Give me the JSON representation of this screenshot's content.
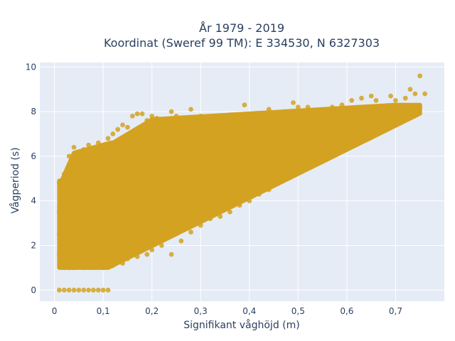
{
  "chart_data": {
    "type": "scatter",
    "title_line1": "År 1979 - 2019",
    "title_line2": "Koordinat (Sweref 99 TM): E 334530, N 6327303",
    "xlabel": "Signifikant våghöjd (m)",
    "ylabel": "Vågperiod (s)",
    "xlim": [
      -0.03,
      0.8
    ],
    "ylim": [
      -0.5,
      10.2
    ],
    "x_ticks": [
      0,
      0.1,
      0.2,
      0.3,
      0.4,
      0.5,
      0.6,
      0.7
    ],
    "x_tick_labels": [
      "0",
      "0,1",
      "0,2",
      "0,3",
      "0,4",
      "0,5",
      "0,6",
      "0,7"
    ],
    "y_ticks": [
      0,
      2,
      4,
      6,
      8,
      10
    ],
    "y_tick_labels": [
      "0",
      "2",
      "4",
      "6",
      "8",
      "10"
    ],
    "marker_color": "#d4a221",
    "background_color": "#e5ecf6",
    "grid": true,
    "series": [
      {
        "points": [
          [
            0.01,
            0.0
          ],
          [
            0.02,
            0.0
          ],
          [
            0.03,
            0.0
          ],
          [
            0.04,
            0.0
          ],
          [
            0.05,
            0.0
          ],
          [
            0.06,
            0.0
          ],
          [
            0.07,
            0.0
          ],
          [
            0.08,
            0.0
          ],
          [
            0.09,
            0.0
          ],
          [
            0.1,
            0.0
          ],
          [
            0.11,
            0.0
          ],
          [
            0.01,
            4.8
          ],
          [
            0.01,
            3.5
          ],
          [
            0.01,
            2.5
          ],
          [
            0.01,
            1.6
          ],
          [
            0.02,
            5.2
          ],
          [
            0.02,
            1.1
          ],
          [
            0.03,
            6.0
          ],
          [
            0.03,
            1.0
          ],
          [
            0.04,
            6.4
          ],
          [
            0.05,
            6.2
          ],
          [
            0.06,
            6.3
          ],
          [
            0.07,
            6.5
          ],
          [
            0.08,
            6.2
          ],
          [
            0.09,
            6.6
          ],
          [
            0.1,
            6.5
          ],
          [
            0.11,
            6.8
          ],
          [
            0.12,
            7.0
          ],
          [
            0.13,
            7.2
          ],
          [
            0.14,
            7.4
          ],
          [
            0.15,
            7.3
          ],
          [
            0.16,
            7.8
          ],
          [
            0.17,
            7.9
          ],
          [
            0.18,
            7.9
          ],
          [
            0.19,
            7.6
          ],
          [
            0.2,
            7.8
          ],
          [
            0.21,
            7.7
          ],
          [
            0.22,
            7.6
          ],
          [
            0.24,
            8.0
          ],
          [
            0.25,
            7.8
          ],
          [
            0.27,
            7.6
          ],
          [
            0.28,
            8.1
          ],
          [
            0.3,
            7.8
          ],
          [
            0.33,
            7.7
          ],
          [
            0.35,
            7.6
          ],
          [
            0.36,
            7.5
          ],
          [
            0.38,
            7.4
          ],
          [
            0.39,
            8.3
          ],
          [
            0.4,
            7.6
          ],
          [
            0.42,
            7.8
          ],
          [
            0.44,
            8.1
          ],
          [
            0.45,
            7.9
          ],
          [
            0.47,
            8.0
          ],
          [
            0.49,
            8.4
          ],
          [
            0.5,
            8.2
          ],
          [
            0.52,
            8.2
          ],
          [
            0.53,
            8.0
          ],
          [
            0.55,
            8.0
          ],
          [
            0.57,
            8.2
          ],
          [
            0.59,
            8.3
          ],
          [
            0.61,
            8.5
          ],
          [
            0.63,
            8.6
          ],
          [
            0.65,
            8.7
          ],
          [
            0.66,
            8.5
          ],
          [
            0.69,
            8.7
          ],
          [
            0.7,
            8.5
          ],
          [
            0.72,
            8.6
          ],
          [
            0.73,
            9.0
          ],
          [
            0.74,
            8.8
          ],
          [
            0.75,
            9.6
          ],
          [
            0.76,
            8.8
          ],
          [
            0.02,
            1.0
          ],
          [
            0.04,
            1.0
          ],
          [
            0.06,
            1.0
          ],
          [
            0.08,
            1.0
          ],
          [
            0.1,
            1.0
          ],
          [
            0.12,
            1.1
          ],
          [
            0.14,
            1.2
          ],
          [
            0.15,
            1.4
          ],
          [
            0.17,
            1.5
          ],
          [
            0.19,
            1.6
          ],
          [
            0.2,
            1.8
          ],
          [
            0.22,
            2.0
          ],
          [
            0.24,
            1.6
          ],
          [
            0.26,
            2.2
          ],
          [
            0.28,
            2.6
          ],
          [
            0.3,
            2.9
          ],
          [
            0.32,
            3.2
          ],
          [
            0.34,
            3.3
          ],
          [
            0.36,
            3.5
          ],
          [
            0.38,
            3.8
          ],
          [
            0.4,
            4.0
          ],
          [
            0.42,
            4.3
          ],
          [
            0.44,
            4.5
          ],
          [
            0.46,
            4.8
          ],
          [
            0.48,
            5.1
          ],
          [
            0.5,
            5.3
          ],
          [
            0.52,
            5.6
          ],
          [
            0.54,
            5.8
          ],
          [
            0.56,
            6.0
          ],
          [
            0.58,
            6.2
          ],
          [
            0.6,
            6.5
          ],
          [
            0.62,
            6.7
          ],
          [
            0.64,
            6.9
          ],
          [
            0.66,
            7.1
          ],
          [
            0.68,
            7.3
          ],
          [
            0.7,
            7.6
          ],
          [
            0.72,
            7.8
          ],
          [
            0.74,
            8.0
          ]
        ]
      }
    ]
  }
}
